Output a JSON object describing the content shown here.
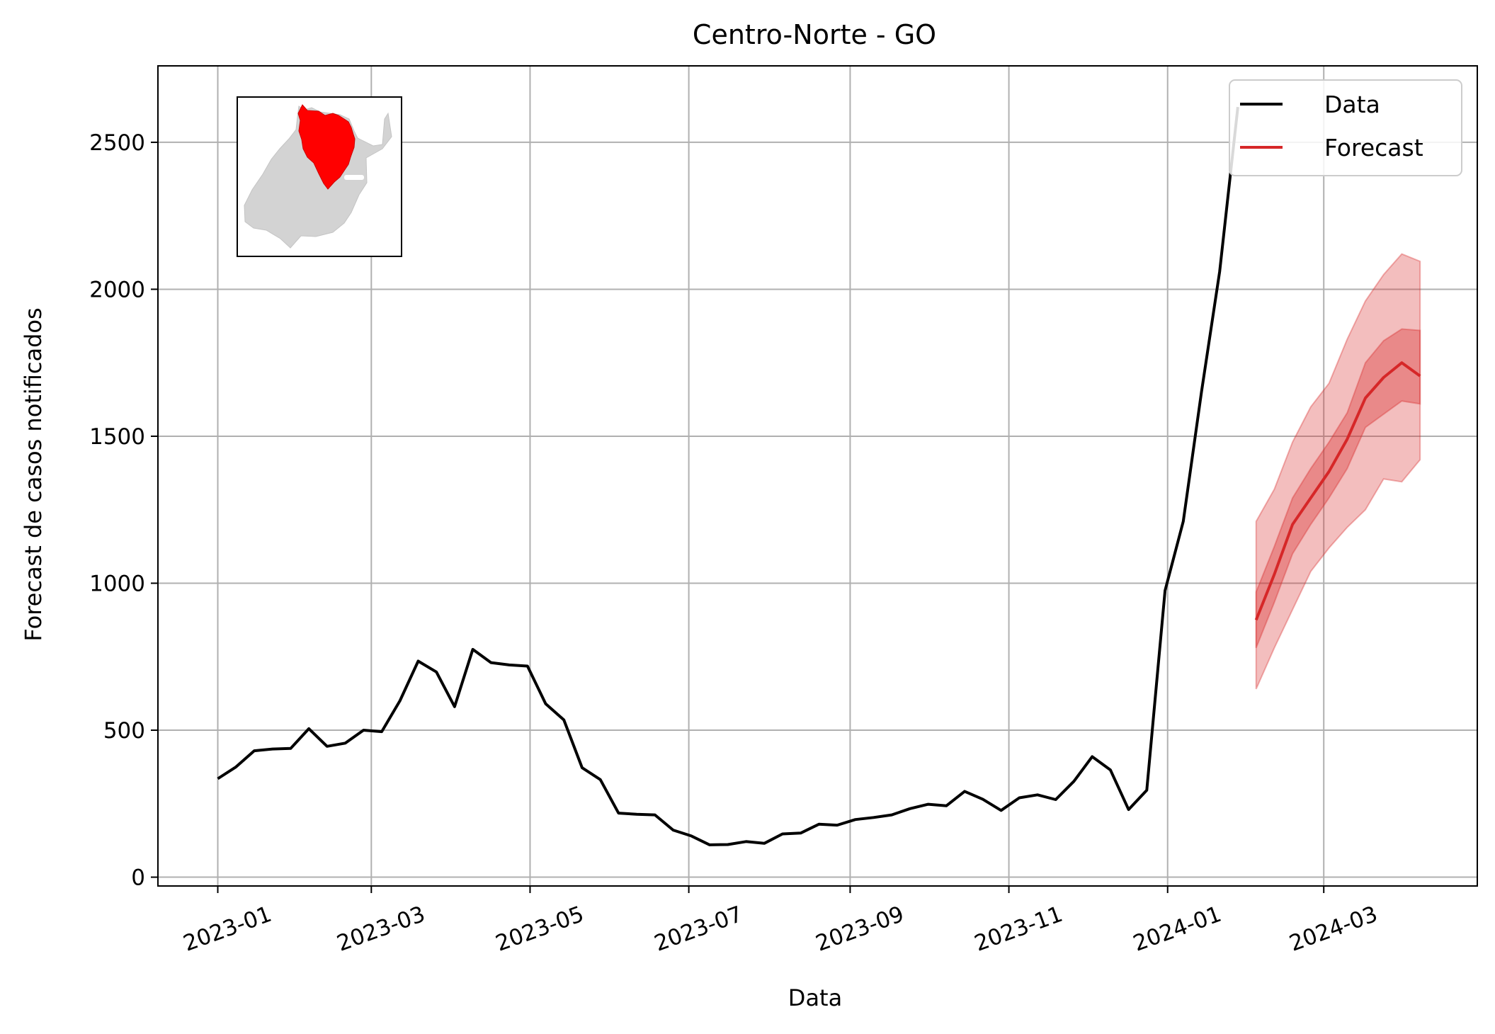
{
  "chart_data": {
    "type": "line",
    "title": "Centro-Norte - GO",
    "xlabel": "Data",
    "ylabel": "Forecast de casos notificados",
    "xlim": [
      "2022-12-09",
      "2024-04-29"
    ],
    "ylim": [
      -30,
      2760
    ],
    "grid": true,
    "legend_position": "top-right",
    "x_ticks": [
      "2023-01",
      "2023-03",
      "2023-05",
      "2023-07",
      "2023-09",
      "2023-11",
      "2024-01",
      "2024-03"
    ],
    "y_ticks": [
      0,
      500,
      1000,
      1500,
      2000,
      2500
    ],
    "series": [
      {
        "name": "Data",
        "color": "#000000",
        "x": [
          "2023-01-01",
          "2023-01-08",
          "2023-01-15",
          "2023-01-22",
          "2023-01-29",
          "2023-02-05",
          "2023-02-12",
          "2023-02-19",
          "2023-02-26",
          "2023-03-05",
          "2023-03-12",
          "2023-03-19",
          "2023-03-26",
          "2023-04-02",
          "2023-04-09",
          "2023-04-16",
          "2023-04-23",
          "2023-04-30",
          "2023-05-07",
          "2023-05-14",
          "2023-05-21",
          "2023-05-28",
          "2023-06-04",
          "2023-06-11",
          "2023-06-18",
          "2023-06-25",
          "2023-07-02",
          "2023-07-09",
          "2023-07-16",
          "2023-07-23",
          "2023-07-30",
          "2023-08-06",
          "2023-08-13",
          "2023-08-20",
          "2023-08-27",
          "2023-09-03",
          "2023-09-10",
          "2023-09-17",
          "2023-09-24",
          "2023-10-01",
          "2023-10-08",
          "2023-10-15",
          "2023-10-22",
          "2023-10-29",
          "2023-11-05",
          "2023-11-12",
          "2023-11-19",
          "2023-11-26",
          "2023-12-03",
          "2023-12-10",
          "2023-12-17",
          "2023-12-24",
          "2023-12-31",
          "2024-01-07",
          "2024-01-14",
          "2024-01-21",
          "2024-01-28"
        ],
        "values": [
          335,
          375,
          430,
          436,
          438,
          505,
          445,
          456,
          500,
          495,
          600,
          735,
          698,
          580,
          775,
          730,
          722,
          718,
          590,
          535,
          372,
          332,
          218,
          214,
          212,
          160,
          140,
          110,
          111,
          121,
          115,
          147,
          150,
          180,
          177,
          196,
          203,
          212,
          233,
          248,
          243,
          292,
          265,
          227,
          270,
          280,
          264,
          326,
          410,
          365,
          230,
          296,
          975,
          1210,
          1650,
          2060,
          2620
        ]
      },
      {
        "name": "Forecast",
        "color": "#d62728",
        "x": [
          "2024-02-04",
          "2024-02-11",
          "2024-02-18",
          "2024-02-25",
          "2024-03-03",
          "2024-03-10",
          "2024-03-17",
          "2024-03-24",
          "2024-03-31",
          "2024-04-07"
        ],
        "values": [
          875,
          1030,
          1200,
          1290,
          1380,
          1490,
          1630,
          1700,
          1750,
          1705
        ],
        "lower_90": [
          640,
          780,
          910,
          1040,
          1120,
          1190,
          1250,
          1355,
          1345,
          1420
        ],
        "upper_90": [
          1210,
          1320,
          1480,
          1600,
          1680,
          1830,
          1960,
          2050,
          2120,
          2095
        ],
        "lower_50": [
          780,
          935,
          1100,
          1200,
          1290,
          1390,
          1530,
          1575,
          1620,
          1610
        ],
        "upper_50": [
          970,
          1125,
          1290,
          1390,
          1480,
          1580,
          1750,
          1825,
          1865,
          1860
        ]
      }
    ],
    "inset": {
      "type": "map",
      "base_color": "#d3d3d3",
      "highlight_color": "#ff0000"
    }
  }
}
